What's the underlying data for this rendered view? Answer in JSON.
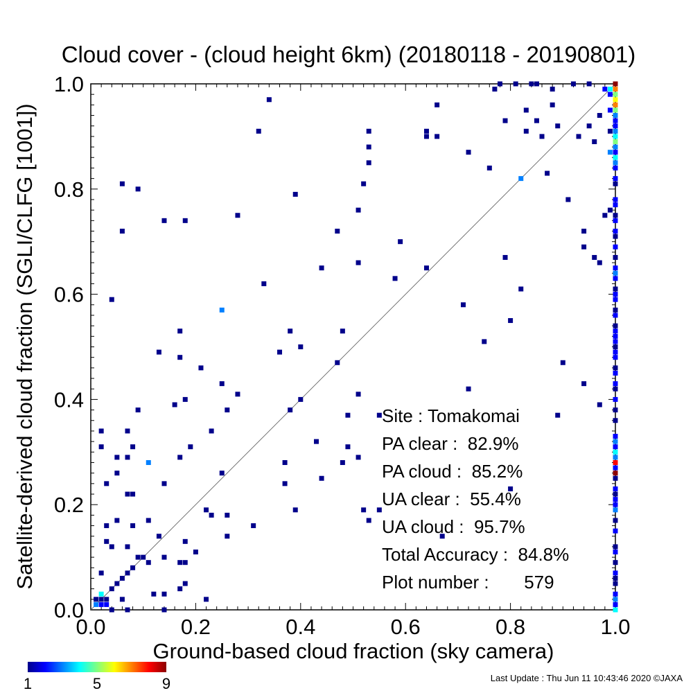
{
  "chart_data": {
    "type": "heatmap",
    "title": "Cloud cover - (cloud height 6km)  (20180118 - 20190801)",
    "xlabel": "Ground-based cloud fraction (sky camera)",
    "ylabel": "Satellite-derived cloud fraction (SGLI/CLFG [1001])",
    "xlim": [
      0.0,
      1.0
    ],
    "ylim": [
      0.0,
      1.0
    ],
    "x_ticks": [
      "0.0",
      "0.2",
      "0.4",
      "0.6",
      "0.8",
      "1.0"
    ],
    "y_ticks": [
      "0.0",
      "0.2",
      "0.4",
      "0.6",
      "0.8",
      "1.0"
    ],
    "grid": false,
    "reference_line": "y = x",
    "colorscale": {
      "min": 1,
      "max": 9,
      "tick_labels": [
        "1",
        "5",
        "9"
      ],
      "colors": [
        "#00008b",
        "#0000ff",
        "#0080ff",
        "#00ffff",
        "#80ff80",
        "#ffff00",
        "#ff8000",
        "#ff0000",
        "#8b0000"
      ]
    },
    "stats": [
      "Site : Tomakomai",
      "PA clear :  82.9%",
      "PA cloud :  85.2%",
      "UA clear :  55.4%",
      "UA cloud :  95.7%",
      "Total Accuracy :  84.8%",
      "Plot number :       579"
    ],
    "points": [
      {
        "x": 0.01,
        "y": 0.01,
        "c": 3
      },
      {
        "x": 0.02,
        "y": 0.01,
        "c": 2
      },
      {
        "x": 0.03,
        "y": 0.01,
        "c": 2
      },
      {
        "x": 0.01,
        "y": 0.02,
        "c": 1
      },
      {
        "x": 0.02,
        "y": 0.02,
        "c": 1
      },
      {
        "x": 0.03,
        "y": 0.02,
        "c": 1
      },
      {
        "x": 0.02,
        "y": 0.03,
        "c": 4
      },
      {
        "x": 0.04,
        "y": 0.0,
        "c": 1
      },
      {
        "x": 0.07,
        "y": 0.0,
        "c": 1
      },
      {
        "x": 0.14,
        "y": 0.0,
        "c": 1
      },
      {
        "x": 0.06,
        "y": 0.02,
        "c": 1
      },
      {
        "x": 0.04,
        "y": 0.04,
        "c": 1
      },
      {
        "x": 0.05,
        "y": 0.05,
        "c": 1
      },
      {
        "x": 0.06,
        "y": 0.06,
        "c": 1
      },
      {
        "x": 0.07,
        "y": 0.07,
        "c": 1
      },
      {
        "x": 0.08,
        "y": 0.08,
        "c": 1
      },
      {
        "x": 0.09,
        "y": 0.1,
        "c": 1
      },
      {
        "x": 0.1,
        "y": 0.1,
        "c": 1
      },
      {
        "x": 0.11,
        "y": 0.09,
        "c": 1
      },
      {
        "x": 0.12,
        "y": 0.03,
        "c": 1
      },
      {
        "x": 0.14,
        "y": 0.03,
        "c": 1
      },
      {
        "x": 0.17,
        "y": 0.04,
        "c": 1
      },
      {
        "x": 0.18,
        "y": 0.05,
        "c": 1
      },
      {
        "x": 0.14,
        "y": 0.1,
        "c": 1
      },
      {
        "x": 0.17,
        "y": 0.09,
        "c": 1
      },
      {
        "x": 0.18,
        "y": 0.09,
        "c": 1
      },
      {
        "x": 0.18,
        "y": 0.13,
        "c": 1
      },
      {
        "x": 0.2,
        "y": 0.11,
        "c": 1
      },
      {
        "x": 0.22,
        "y": 0.02,
        "c": 1
      },
      {
        "x": 0.13,
        "y": 0.14,
        "c": 1
      },
      {
        "x": 0.11,
        "y": 0.17,
        "c": 1
      },
      {
        "x": 0.08,
        "y": 0.16,
        "c": 1
      },
      {
        "x": 0.07,
        "y": 0.12,
        "c": 1
      },
      {
        "x": 0.05,
        "y": 0.17,
        "c": 1
      },
      {
        "x": 0.03,
        "y": 0.16,
        "c": 1
      },
      {
        "x": 0.03,
        "y": 0.13,
        "c": 1
      },
      {
        "x": 0.04,
        "y": 0.12,
        "c": 1
      },
      {
        "x": 0.02,
        "y": 0.07,
        "c": 1
      },
      {
        "x": 0.03,
        "y": 0.24,
        "c": 1
      },
      {
        "x": 0.05,
        "y": 0.26,
        "c": 1
      },
      {
        "x": 0.05,
        "y": 0.29,
        "c": 1
      },
      {
        "x": 0.07,
        "y": 0.29,
        "c": 1
      },
      {
        "x": 0.08,
        "y": 0.31,
        "c": 1
      },
      {
        "x": 0.07,
        "y": 0.22,
        "c": 1
      },
      {
        "x": 0.08,
        "y": 0.22,
        "c": 1
      },
      {
        "x": 0.11,
        "y": 0.28,
        "c": 3
      },
      {
        "x": 0.14,
        "y": 0.24,
        "c": 1
      },
      {
        "x": 0.17,
        "y": 0.29,
        "c": 1
      },
      {
        "x": 0.19,
        "y": 0.31,
        "c": 1
      },
      {
        "x": 0.02,
        "y": 0.31,
        "c": 1
      },
      {
        "x": 0.02,
        "y": 0.34,
        "c": 1
      },
      {
        "x": 0.07,
        "y": 0.34,
        "c": 1
      },
      {
        "x": 0.09,
        "y": 0.38,
        "c": 1
      },
      {
        "x": 0.16,
        "y": 0.39,
        "c": 1
      },
      {
        "x": 0.18,
        "y": 0.4,
        "c": 1
      },
      {
        "x": 0.23,
        "y": 0.34,
        "c": 1
      },
      {
        "x": 0.25,
        "y": 0.26,
        "c": 1
      },
      {
        "x": 0.22,
        "y": 0.19,
        "c": 1
      },
      {
        "x": 0.23,
        "y": 0.18,
        "c": 1
      },
      {
        "x": 0.26,
        "y": 0.18,
        "c": 1
      },
      {
        "x": 0.26,
        "y": 0.14,
        "c": 1
      },
      {
        "x": 0.31,
        "y": 0.16,
        "c": 1
      },
      {
        "x": 0.13,
        "y": 0.49,
        "c": 1
      },
      {
        "x": 0.17,
        "y": 0.48,
        "c": 1
      },
      {
        "x": 0.17,
        "y": 0.53,
        "c": 1
      },
      {
        "x": 0.21,
        "y": 0.46,
        "c": 1
      },
      {
        "x": 0.25,
        "y": 0.43,
        "c": 1
      },
      {
        "x": 0.25,
        "y": 0.57,
        "c": 3
      },
      {
        "x": 0.28,
        "y": 0.41,
        "c": 1
      },
      {
        "x": 0.26,
        "y": 0.38,
        "c": 1
      },
      {
        "x": 0.04,
        "y": 0.59,
        "c": 1
      },
      {
        "x": 0.06,
        "y": 0.72,
        "c": 1
      },
      {
        "x": 0.06,
        "y": 0.81,
        "c": 1
      },
      {
        "x": 0.09,
        "y": 0.8,
        "c": 1
      },
      {
        "x": 0.14,
        "y": 0.74,
        "c": 1
      },
      {
        "x": 0.18,
        "y": 0.74,
        "c": 1
      },
      {
        "x": 0.28,
        "y": 0.75,
        "c": 1
      },
      {
        "x": 0.32,
        "y": 0.91,
        "c": 1
      },
      {
        "x": 0.34,
        "y": 0.97,
        "c": 1
      },
      {
        "x": 0.33,
        "y": 0.62,
        "c": 1
      },
      {
        "x": 0.39,
        "y": 0.79,
        "c": 1
      },
      {
        "x": 0.36,
        "y": 0.49,
        "c": 1
      },
      {
        "x": 0.38,
        "y": 0.53,
        "c": 1
      },
      {
        "x": 0.4,
        "y": 0.5,
        "c": 1
      },
      {
        "x": 0.38,
        "y": 0.38,
        "c": 1
      },
      {
        "x": 0.4,
        "y": 0.4,
        "c": 1
      },
      {
        "x": 0.37,
        "y": 0.28,
        "c": 1
      },
      {
        "x": 0.37,
        "y": 0.24,
        "c": 1
      },
      {
        "x": 0.39,
        "y": 0.19,
        "c": 1
      },
      {
        "x": 0.43,
        "y": 0.32,
        "c": 1
      },
      {
        "x": 0.44,
        "y": 0.25,
        "c": 1
      },
      {
        "x": 0.44,
        "y": 0.65,
        "c": 1
      },
      {
        "x": 0.47,
        "y": 0.72,
        "c": 1
      },
      {
        "x": 0.47,
        "y": 0.47,
        "c": 1
      },
      {
        "x": 0.48,
        "y": 0.53,
        "c": 1
      },
      {
        "x": 0.48,
        "y": 0.28,
        "c": 1
      },
      {
        "x": 0.49,
        "y": 0.37,
        "c": 1
      },
      {
        "x": 0.49,
        "y": 0.31,
        "c": 1
      },
      {
        "x": 0.51,
        "y": 0.29,
        "c": 1
      },
      {
        "x": 0.51,
        "y": 0.41,
        "c": 1
      },
      {
        "x": 0.51,
        "y": 0.66,
        "c": 1
      },
      {
        "x": 0.51,
        "y": 0.76,
        "c": 1
      },
      {
        "x": 0.52,
        "y": 0.81,
        "c": 1
      },
      {
        "x": 0.53,
        "y": 0.85,
        "c": 1
      },
      {
        "x": 0.53,
        "y": 0.88,
        "c": 1
      },
      {
        "x": 0.53,
        "y": 0.91,
        "c": 1
      },
      {
        "x": 0.52,
        "y": 0.19,
        "c": 1
      },
      {
        "x": 0.53,
        "y": 0.17,
        "c": 1
      },
      {
        "x": 0.55,
        "y": 0.19,
        "c": 1
      },
      {
        "x": 0.55,
        "y": 0.37,
        "c": 1
      },
      {
        "x": 0.58,
        "y": 0.63,
        "c": 1
      },
      {
        "x": 0.59,
        "y": 0.7,
        "c": 1
      },
      {
        "x": 0.64,
        "y": 0.65,
        "c": 1
      },
      {
        "x": 0.64,
        "y": 0.9,
        "c": 1
      },
      {
        "x": 0.64,
        "y": 0.91,
        "c": 1
      },
      {
        "x": 0.66,
        "y": 0.9,
        "c": 1
      },
      {
        "x": 0.66,
        "y": 0.96,
        "c": 1
      },
      {
        "x": 0.67,
        "y": 0.14,
        "c": 1
      },
      {
        "x": 0.71,
        "y": 0.58,
        "c": 1
      },
      {
        "x": 0.72,
        "y": 0.42,
        "c": 1
      },
      {
        "x": 0.72,
        "y": 0.87,
        "c": 1
      },
      {
        "x": 0.75,
        "y": 0.51,
        "c": 1
      },
      {
        "x": 0.76,
        "y": 0.84,
        "c": 1
      },
      {
        "x": 0.77,
        "y": 0.99,
        "c": 1
      },
      {
        "x": 0.78,
        "y": 1.0,
        "c": 1
      },
      {
        "x": 0.79,
        "y": 0.93,
        "c": 1
      },
      {
        "x": 0.79,
        "y": 0.67,
        "c": 1
      },
      {
        "x": 0.8,
        "y": 0.55,
        "c": 1
      },
      {
        "x": 0.8,
        "y": 0.23,
        "c": 1
      },
      {
        "x": 0.81,
        "y": 1.0,
        "c": 1
      },
      {
        "x": 0.82,
        "y": 0.82,
        "c": 3
      },
      {
        "x": 0.82,
        "y": 0.61,
        "c": 1
      },
      {
        "x": 0.83,
        "y": 0.95,
        "c": 1
      },
      {
        "x": 0.83,
        "y": 0.91,
        "c": 1
      },
      {
        "x": 0.84,
        "y": 1.0,
        "c": 1
      },
      {
        "x": 0.85,
        "y": 1.0,
        "c": 1
      },
      {
        "x": 0.85,
        "y": 0.93,
        "c": 1
      },
      {
        "x": 0.86,
        "y": 0.9,
        "c": 1
      },
      {
        "x": 0.87,
        "y": 0.83,
        "c": 1
      },
      {
        "x": 0.88,
        "y": 0.96,
        "c": 1
      },
      {
        "x": 0.88,
        "y": 0.99,
        "c": 1
      },
      {
        "x": 0.89,
        "y": 0.92,
        "c": 1
      },
      {
        "x": 0.89,
        "y": 0.37,
        "c": 1
      },
      {
        "x": 0.9,
        "y": 0.47,
        "c": 1
      },
      {
        "x": 0.91,
        "y": 0.78,
        "c": 1
      },
      {
        "x": 0.92,
        "y": 1.0,
        "c": 1
      },
      {
        "x": 0.93,
        "y": 0.9,
        "c": 1
      },
      {
        "x": 0.94,
        "y": 0.72,
        "c": 1
      },
      {
        "x": 0.94,
        "y": 0.69,
        "c": 1
      },
      {
        "x": 0.94,
        "y": 0.43,
        "c": 1
      },
      {
        "x": 0.95,
        "y": 0.92,
        "c": 1
      },
      {
        "x": 0.95,
        "y": 1.0,
        "c": 1
      },
      {
        "x": 0.96,
        "y": 0.89,
        "c": 1
      },
      {
        "x": 0.96,
        "y": 0.67,
        "c": 1
      },
      {
        "x": 0.97,
        "y": 0.94,
        "c": 1
      },
      {
        "x": 0.97,
        "y": 0.39,
        "c": 1
      },
      {
        "x": 0.97,
        "y": 0.66,
        "c": 1
      },
      {
        "x": 0.98,
        "y": 0.75,
        "c": 1
      },
      {
        "x": 0.98,
        "y": 0.99,
        "c": 2
      },
      {
        "x": 0.99,
        "y": 0.99,
        "c": 4
      },
      {
        "x": 0.99,
        "y": 0.98,
        "c": 2
      },
      {
        "x": 0.99,
        "y": 0.87,
        "c": 3
      },
      {
        "x": 0.99,
        "y": 0.76,
        "c": 1
      },
      {
        "x": 0.99,
        "y": 0.95,
        "c": 2
      },
      {
        "x": 0.99,
        "y": 0.91,
        "c": 1
      },
      {
        "x": 1.0,
        "y": 1.0,
        "c": 9
      },
      {
        "x": 1.0,
        "y": 0.99,
        "c": 7
      },
      {
        "x": 1.0,
        "y": 0.98,
        "c": 5
      },
      {
        "x": 1.0,
        "y": 0.97,
        "c": 6
      },
      {
        "x": 1.0,
        "y": 0.96,
        "c": 7
      },
      {
        "x": 1.0,
        "y": 0.95,
        "c": 5
      },
      {
        "x": 1.0,
        "y": 0.94,
        "c": 3
      },
      {
        "x": 1.0,
        "y": 0.93,
        "c": 2
      },
      {
        "x": 1.0,
        "y": 0.92,
        "c": 2
      },
      {
        "x": 1.0,
        "y": 0.91,
        "c": 3
      },
      {
        "x": 1.0,
        "y": 0.9,
        "c": 4
      },
      {
        "x": 1.0,
        "y": 0.89,
        "c": 5
      },
      {
        "x": 1.0,
        "y": 0.88,
        "c": 3
      },
      {
        "x": 1.0,
        "y": 0.87,
        "c": 2
      },
      {
        "x": 1.0,
        "y": 0.86,
        "c": 4
      },
      {
        "x": 1.0,
        "y": 0.85,
        "c": 3
      },
      {
        "x": 1.0,
        "y": 0.84,
        "c": 2
      },
      {
        "x": 1.0,
        "y": 0.82,
        "c": 2
      },
      {
        "x": 1.0,
        "y": 0.81,
        "c": 1
      },
      {
        "x": 1.0,
        "y": 0.78,
        "c": 2
      },
      {
        "x": 1.0,
        "y": 0.77,
        "c": 2
      },
      {
        "x": 1.0,
        "y": 0.75,
        "c": 1
      },
      {
        "x": 1.0,
        "y": 0.74,
        "c": 2
      },
      {
        "x": 1.0,
        "y": 0.72,
        "c": 2
      },
      {
        "x": 1.0,
        "y": 0.71,
        "c": 1
      },
      {
        "x": 1.0,
        "y": 0.69,
        "c": 2
      },
      {
        "x": 1.0,
        "y": 0.67,
        "c": 1
      },
      {
        "x": 1.0,
        "y": 0.65,
        "c": 2
      },
      {
        "x": 1.0,
        "y": 0.64,
        "c": 3
      },
      {
        "x": 1.0,
        "y": 0.63,
        "c": 2
      },
      {
        "x": 1.0,
        "y": 0.61,
        "c": 1
      },
      {
        "x": 1.0,
        "y": 0.6,
        "c": 2
      },
      {
        "x": 1.0,
        "y": 0.59,
        "c": 2
      },
      {
        "x": 1.0,
        "y": 0.57,
        "c": 1
      },
      {
        "x": 1.0,
        "y": 0.56,
        "c": 2
      },
      {
        "x": 1.0,
        "y": 0.54,
        "c": 1
      },
      {
        "x": 1.0,
        "y": 0.53,
        "c": 2
      },
      {
        "x": 1.0,
        "y": 0.52,
        "c": 2
      },
      {
        "x": 1.0,
        "y": 0.51,
        "c": 2
      },
      {
        "x": 1.0,
        "y": 0.5,
        "c": 1
      },
      {
        "x": 1.0,
        "y": 0.49,
        "c": 2
      },
      {
        "x": 1.0,
        "y": 0.48,
        "c": 2
      },
      {
        "x": 1.0,
        "y": 0.46,
        "c": 1
      },
      {
        "x": 1.0,
        "y": 0.45,
        "c": 2
      },
      {
        "x": 1.0,
        "y": 0.43,
        "c": 2
      },
      {
        "x": 1.0,
        "y": 0.42,
        "c": 1
      },
      {
        "x": 1.0,
        "y": 0.4,
        "c": 2
      },
      {
        "x": 1.0,
        "y": 0.38,
        "c": 1
      },
      {
        "x": 1.0,
        "y": 0.36,
        "c": 1
      },
      {
        "x": 1.0,
        "y": 0.33,
        "c": 2
      },
      {
        "x": 1.0,
        "y": 0.32,
        "c": 3
      },
      {
        "x": 1.0,
        "y": 0.31,
        "c": 2
      },
      {
        "x": 1.0,
        "y": 0.3,
        "c": 4
      },
      {
        "x": 1.0,
        "y": 0.29,
        "c": 3
      },
      {
        "x": 1.0,
        "y": 0.28,
        "c": 8
      },
      {
        "x": 1.0,
        "y": 0.27,
        "c": 2
      },
      {
        "x": 1.0,
        "y": 0.26,
        "c": 9
      },
      {
        "x": 1.0,
        "y": 0.25,
        "c": 1
      },
      {
        "x": 1.0,
        "y": 0.23,
        "c": 2
      },
      {
        "x": 1.0,
        "y": 0.22,
        "c": 1
      },
      {
        "x": 1.0,
        "y": 0.21,
        "c": 2
      },
      {
        "x": 1.0,
        "y": 0.2,
        "c": 2
      },
      {
        "x": 1.0,
        "y": 0.19,
        "c": 3
      },
      {
        "x": 1.0,
        "y": 0.17,
        "c": 1
      },
      {
        "x": 1.0,
        "y": 0.15,
        "c": 2
      },
      {
        "x": 1.0,
        "y": 0.12,
        "c": 1
      },
      {
        "x": 1.0,
        "y": 0.11,
        "c": 2
      },
      {
        "x": 1.0,
        "y": 0.09,
        "c": 1
      },
      {
        "x": 1.0,
        "y": 0.07,
        "c": 2
      },
      {
        "x": 1.0,
        "y": 0.06,
        "c": 1
      },
      {
        "x": 1.0,
        "y": 0.05,
        "c": 1
      },
      {
        "x": 1.0,
        "y": 0.03,
        "c": 2
      },
      {
        "x": 1.0,
        "y": 0.02,
        "c": 3
      },
      {
        "x": 1.0,
        "y": 0.01,
        "c": 2
      },
      {
        "x": 1.0,
        "y": 0.0,
        "c": 4
      }
    ]
  },
  "footer": {
    "last_update": "Last Update : Thu Jun 11 10:43:46 2020  ©JAXA"
  }
}
